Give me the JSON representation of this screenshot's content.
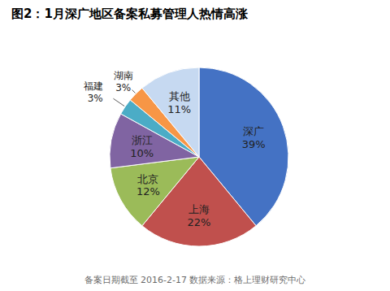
{
  "chart_data": {
    "type": "pie",
    "title": "图2：1月深广地区备案私募管理人热情高涨",
    "annotations": [
      "备案日期截至 2016-2-17  数据来源：格上理财研究中心"
    ],
    "categories": [
      "深广",
      "上海",
      "北京",
      "浙江",
      "福建",
      "湖南",
      "其他"
    ],
    "values": [
      39,
      22,
      12,
      10,
      3,
      3,
      11
    ],
    "value_labels": [
      "39%",
      "22%",
      "12%",
      "10%",
      "3%",
      "3%",
      "11%"
    ],
    "colors": [
      "#4472C4",
      "#C0504D",
      "#9BBB59",
      "#8064A2",
      "#4BACC6",
      "#F79646",
      "#C6D9F1"
    ],
    "data_labels": true
  }
}
